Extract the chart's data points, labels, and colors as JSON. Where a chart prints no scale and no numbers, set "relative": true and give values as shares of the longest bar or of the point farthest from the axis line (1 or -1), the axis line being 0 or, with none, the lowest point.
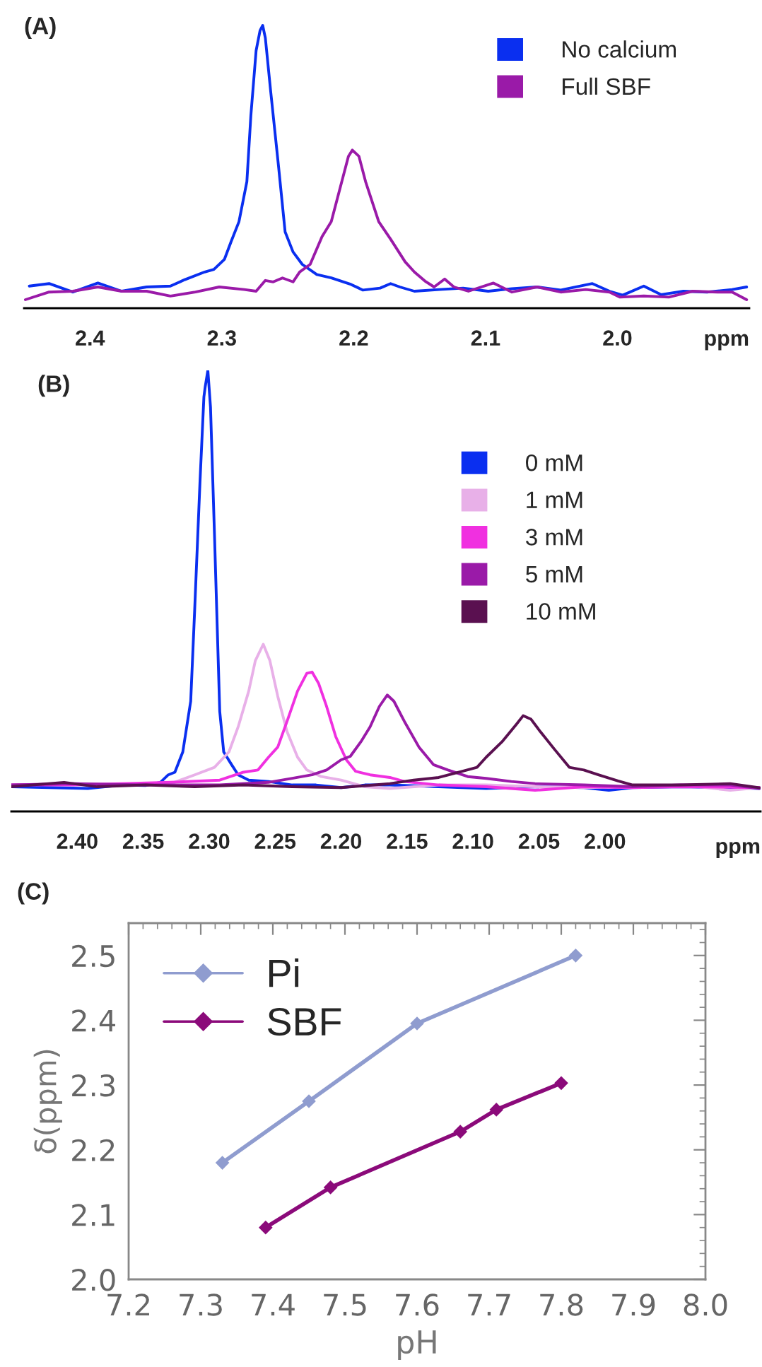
{
  "chart_data": [
    {
      "type": "line",
      "title": "(A)",
      "xlabel": "ppm",
      "relative": true,
      "xlim": [
        2.45,
        1.9
      ],
      "xticks": [
        2.4,
        2.3,
        2.2,
        2.1,
        {
          "value": 2.0,
          "label": "2.0"
        }
      ],
      "legend": "top right",
      "series": [
        {
          "name": "No calcium",
          "color": "#0a2ff0",
          "x": [
            2.446,
            2.431,
            2.413,
            2.394,
            2.376,
            2.357,
            2.339,
            2.328,
            2.313,
            2.306,
            2.298,
            2.293,
            2.287,
            2.281,
            2.278,
            2.274,
            2.271,
            2.269,
            2.267,
            2.263,
            2.257,
            2.252,
            2.246,
            2.239,
            2.228,
            2.217,
            2.202,
            2.193,
            2.18,
            2.172,
            2.165,
            2.154,
            2.135,
            2.117,
            2.098,
            2.08,
            2.061,
            2.043,
            2.019,
            2.006,
            1.996,
            1.98,
            1.967,
            1.95,
            1.932,
            1.913,
            1.902
          ],
          "values": [
            0.078,
            0.087,
            0.057,
            0.089,
            0.06,
            0.075,
            0.078,
            0.101,
            0.128,
            0.137,
            0.173,
            0.235,
            0.306,
            0.448,
            0.68,
            0.911,
            0.982,
            1,
            0.956,
            0.769,
            0.502,
            0.27,
            0.199,
            0.155,
            0.119,
            0.107,
            0.084,
            0.064,
            0.071,
            0.087,
            0.075,
            0.06,
            0.066,
            0.071,
            0.06,
            0.069,
            0.075,
            0.064,
            0.087,
            0.06,
            0.046,
            0.078,
            0.048,
            0.06,
            0.057,
            0.066,
            0.075
          ]
        },
        {
          "name": "Full SBF",
          "color": "#9a1aa8",
          "x": [
            2.449,
            2.431,
            2.413,
            2.394,
            2.376,
            2.357,
            2.339,
            2.32,
            2.302,
            2.283,
            2.274,
            2.267,
            2.261,
            2.254,
            2.246,
            2.241,
            2.233,
            2.224,
            2.217,
            2.209,
            2.204,
            2.201,
            2.196,
            2.191,
            2.181,
            2.172,
            2.161,
            2.154,
            2.146,
            2.139,
            2.131,
            2.124,
            2.113,
            2.094,
            2.08,
            2.061,
            2.043,
            2.024,
            2.006,
            1.998,
            1.98,
            1.961,
            1.943,
            1.924,
            1.913,
            1.902
          ],
          "values": [
            0.03,
            0.057,
            0.06,
            0.075,
            0.06,
            0.06,
            0.043,
            0.057,
            0.075,
            0.066,
            0.06,
            0.098,
            0.093,
            0.107,
            0.093,
            0.128,
            0.155,
            0.253,
            0.306,
            0.448,
            0.537,
            0.559,
            0.537,
            0.448,
            0.306,
            0.244,
            0.164,
            0.128,
            0.096,
            0.075,
            0.103,
            0.075,
            0.06,
            0.089,
            0.057,
            0.075,
            0.057,
            0.066,
            0.057,
            0.039,
            0.043,
            0.039,
            0.06,
            0.057,
            0.057,
            0.03
          ]
        }
      ]
    },
    {
      "type": "line",
      "title": "(B)",
      "xlabel": "ppm",
      "relative": true,
      "xlim": [
        2.45,
        1.882
      ],
      "xticks": [
        {
          "value": 2.4,
          "label": "2.40"
        },
        {
          "value": 2.35,
          "label": "2.35"
        },
        {
          "value": 2.3,
          "label": "2.30"
        },
        {
          "value": 2.25,
          "label": "2.25"
        },
        {
          "value": 2.2,
          "label": "2.20"
        },
        {
          "value": 2.15,
          "label": "2.15"
        },
        {
          "value": 2.1,
          "label": "2.10"
        },
        {
          "value": 2.05,
          "label": "2.05"
        },
        {
          "value": 2.0,
          "label": "2.00"
        }
      ],
      "legend": "right",
      "series": [
        {
          "name": "0 mM",
          "color": "#0a2ff0",
          "x": [
            2.45,
            2.421,
            2.392,
            2.366,
            2.348,
            2.337,
            2.331,
            2.326,
            2.32,
            2.314,
            2.311,
            2.307,
            2.304,
            2.303,
            2.301,
            2.299,
            2.296,
            2.292,
            2.289,
            2.283,
            2.278,
            2.27,
            2.255,
            2.237,
            2.219,
            2.2,
            2.182,
            2.163,
            2.126,
            2.09,
            2.053,
            2.016,
            1.997,
            1.979,
            1.942,
            1.905,
            1.883
          ],
          "values": [
            0.056,
            0.054,
            0.052,
            0.06,
            0.059,
            0.066,
            0.083,
            0.089,
            0.135,
            0.25,
            0.457,
            0.745,
            0.94,
            0.963,
            1,
            0.917,
            0.629,
            0.227,
            0.135,
            0.106,
            0.083,
            0.071,
            0.068,
            0.06,
            0.06,
            0.054,
            0.06,
            0.06,
            0.056,
            0.052,
            0.056,
            0.054,
            0.048,
            0.054,
            0.056,
            0.054,
            0.052
          ]
        },
        {
          "name": "1 mM",
          "color": "#e8b0e8",
          "x": [
            2.45,
            2.403,
            2.366,
            2.329,
            2.311,
            2.296,
            2.285,
            2.278,
            2.27,
            2.265,
            2.259,
            2.254,
            2.248,
            2.241,
            2.233,
            2.226,
            2.215,
            2.2,
            2.182,
            2.163,
            2.126,
            2.09,
            2.053,
            2.016,
            1.979,
            1.942,
            1.905,
            1.883
          ],
          "values": [
            0.06,
            0.063,
            0.06,
            0.063,
            0.083,
            0.1,
            0.135,
            0.192,
            0.273,
            0.342,
            0.379,
            0.342,
            0.261,
            0.181,
            0.123,
            0.094,
            0.079,
            0.071,
            0.056,
            0.052,
            0.06,
            0.06,
            0.056,
            0.054,
            0.056,
            0.06,
            0.048,
            0.054
          ]
        },
        {
          "name": "3 mM",
          "color": "#f030e0",
          "x": [
            2.45,
            2.403,
            2.366,
            2.329,
            2.292,
            2.274,
            2.263,
            2.255,
            2.248,
            2.241,
            2.233,
            2.226,
            2.222,
            2.217,
            2.211,
            2.204,
            2.196,
            2.189,
            2.178,
            2.163,
            2.152,
            2.126,
            2.09,
            2.053,
            2.016,
            1.979,
            1.942,
            1.883
          ],
          "values": [
            0.06,
            0.06,
            0.063,
            0.066,
            0.071,
            0.089,
            0.094,
            0.123,
            0.146,
            0.204,
            0.273,
            0.313,
            0.316,
            0.29,
            0.238,
            0.169,
            0.117,
            0.091,
            0.083,
            0.077,
            0.068,
            0.06,
            0.056,
            0.048,
            0.056,
            0.054,
            0.056,
            0.054
          ]
        },
        {
          "name": "5 mM",
          "color": "#9a1aa8",
          "x": [
            2.45,
            2.403,
            2.348,
            2.292,
            2.255,
            2.237,
            2.222,
            2.211,
            2.2,
            2.193,
            2.185,
            2.178,
            2.171,
            2.165,
            2.16,
            2.152,
            2.141,
            2.13,
            2.119,
            2.104,
            2.09,
            2.071,
            2.053,
            2.016,
            1.979,
            1.942,
            1.905,
            1.883
          ],
          "values": [
            0.06,
            0.063,
            0.06,
            0.06,
            0.066,
            0.075,
            0.083,
            0.094,
            0.117,
            0.125,
            0.158,
            0.192,
            0.238,
            0.264,
            0.25,
            0.204,
            0.146,
            0.106,
            0.094,
            0.079,
            0.075,
            0.068,
            0.063,
            0.06,
            0.056,
            0.06,
            0.06,
            0.052
          ]
        },
        {
          "name": "10 mM",
          "color": "#5a1050",
          "x": [
            2.45,
            2.41,
            2.385,
            2.348,
            2.311,
            2.274,
            2.237,
            2.2,
            2.163,
            2.145,
            2.126,
            2.108,
            2.097,
            2.09,
            2.078,
            2.067,
            2.062,
            2.056,
            2.049,
            2.038,
            2.027,
            2.016,
            2.005,
            1.99,
            1.979,
            1.942,
            1.905,
            1.883
          ],
          "values": [
            0.056,
            0.066,
            0.056,
            0.06,
            0.056,
            0.06,
            0.056,
            0.054,
            0.063,
            0.071,
            0.077,
            0.091,
            0.1,
            0.123,
            0.158,
            0.198,
            0.217,
            0.209,
            0.181,
            0.14,
            0.1,
            0.094,
            0.083,
            0.069,
            0.06,
            0.06,
            0.063,
            0.054
          ]
        }
      ]
    },
    {
      "type": "line",
      "title": "(C)",
      "xlabel": "pH",
      "ylabel": "δ(ppm)",
      "xlim": [
        7.2,
        8.0
      ],
      "ylim": [
        2.0,
        2.55
      ],
      "xticks": [
        7.2,
        7.3,
        7.4,
        7.5,
        7.6,
        7.7,
        7.8,
        7.9,
        {
          "value": 8.0,
          "label": "8.0"
        }
      ],
      "yticks": [
        {
          "value": 2.0,
          "label": "2.0"
        },
        2.1,
        2.2,
        2.3,
        2.4,
        2.5
      ],
      "legend": "top left",
      "marker": "diamond",
      "series": [
        {
          "name": "Pi",
          "color": "#8f9ccf",
          "x": [
            7.33,
            7.45,
            7.6,
            7.82
          ],
          "values": [
            2.18,
            2.275,
            2.395,
            2.5
          ]
        },
        {
          "name": "SBF",
          "color": "#8b0a7a",
          "x": [
            7.39,
            7.48,
            7.66,
            7.71,
            7.8
          ],
          "values": [
            2.08,
            2.142,
            2.228,
            2.262,
            2.303
          ]
        }
      ]
    }
  ]
}
